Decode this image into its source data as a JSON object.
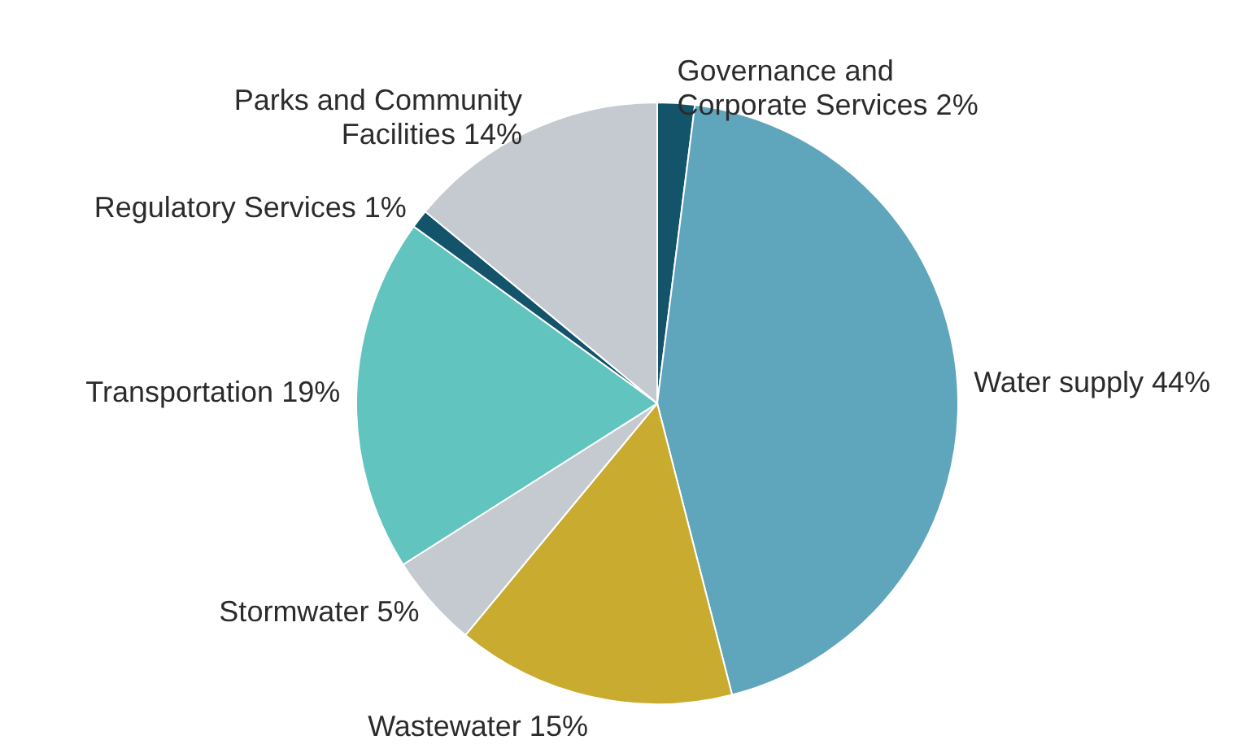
{
  "chart_data": {
    "type": "pie",
    "categories": [
      "Governance and Corporate Services",
      "Water supply",
      "Wastewater",
      "Stormwater",
      "Transportation",
      "Regulatory Services",
      "Parks and Community Facilities"
    ],
    "values": [
      2,
      44,
      15,
      5,
      19,
      1,
      14
    ],
    "value_labels": [
      "2%",
      "44%",
      "15%",
      "5%",
      "19%",
      "1%",
      "14%"
    ],
    "colors": [
      "#13546b",
      "#5fa5bc",
      "#c9ab30",
      "#c5cad0",
      "#62c4bf",
      "#13546b",
      "#c5cad0"
    ]
  }
}
